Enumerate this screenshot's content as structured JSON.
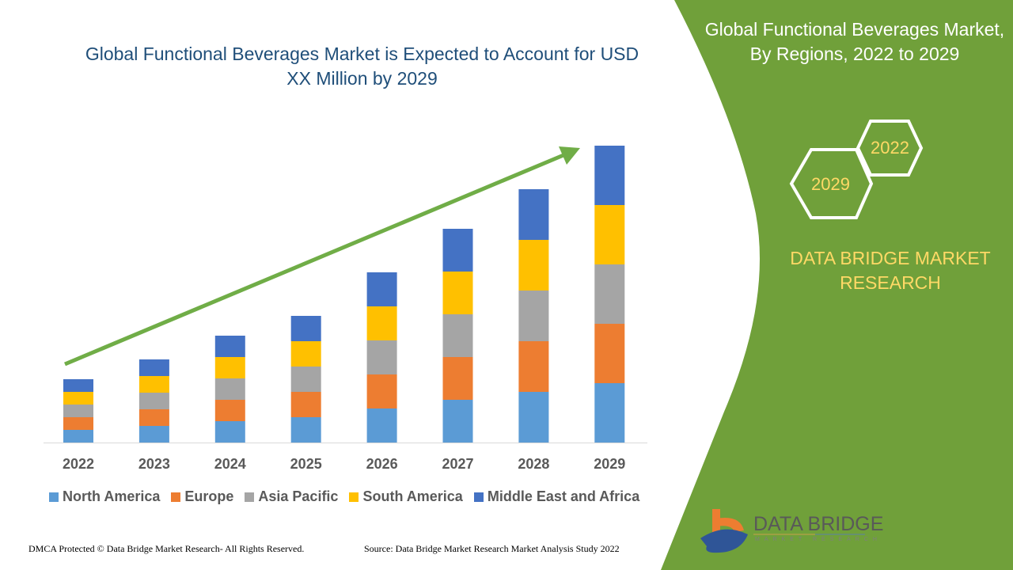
{
  "header": {
    "title": "Global Functional Beverages Market is Expected to Account for USD XX Million by 2029"
  },
  "side_panel": {
    "title": "Global Functional Beverages Market, By Regions, 2022 to 2029",
    "hex_years": [
      "2022",
      "2029"
    ],
    "brand": "DATA BRIDGE MARKET RESEARCH",
    "logo_text": "DATA BRIDGE",
    "logo_sub": "MARKET RESEARCH",
    "color": "#70a03a"
  },
  "footer": {
    "copyright": "DMCA Protected © Data Bridge Market Research- All Rights Reserved.",
    "source": "Source: Data Bridge Market Research Market Analysis Study 2022"
  },
  "chart_data": {
    "type": "bar",
    "stacked": true,
    "categories": [
      "2022",
      "2023",
      "2024",
      "2025",
      "2026",
      "2027",
      "2028",
      "2029"
    ],
    "series": [
      {
        "name": "North America",
        "color": "#5b9bd5",
        "values": [
          16,
          21,
          27,
          32,
          43,
          54,
          64,
          75
        ]
      },
      {
        "name": "Europe",
        "color": "#ed7d31",
        "values": [
          16,
          21,
          27,
          32,
          43,
          54,
          64,
          75
        ]
      },
      {
        "name": "Asia Pacific",
        "color": "#a5a5a5",
        "values": [
          16,
          21,
          27,
          32,
          43,
          54,
          64,
          75
        ]
      },
      {
        "name": "South America",
        "color": "#ffc000",
        "values": [
          16,
          21,
          27,
          32,
          43,
          54,
          64,
          75
        ]
      },
      {
        "name": "Middle East and Africa",
        "color": "#4472c4",
        "values": [
          16,
          21,
          27,
          32,
          43,
          54,
          64,
          75
        ]
      }
    ],
    "y_axis_visible": false,
    "grid": false,
    "legend": "bottom",
    "trend_arrow": true
  }
}
